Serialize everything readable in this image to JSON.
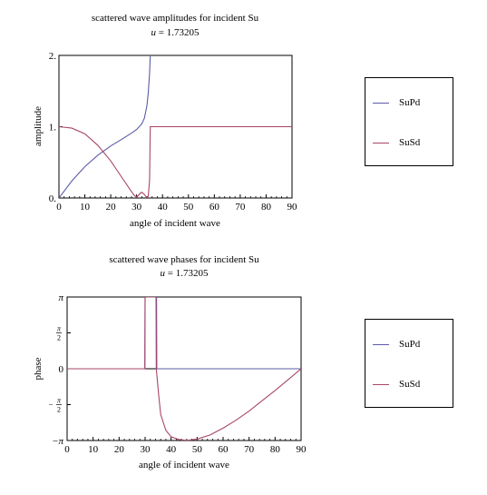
{
  "colors": {
    "SuPd": "#5b5ba8",
    "SuSd": "#a8456b"
  },
  "chart_data": [
    {
      "type": "line",
      "title": "scattered wave amplitudes for incident Su",
      "subtitle_var": "u",
      "subtitle_value": "= 1.73205",
      "xlabel": "angle of incident wave",
      "ylabel": "amplitude",
      "xlim": [
        0,
        90
      ],
      "ylim": [
        0,
        2
      ],
      "x_ticks": [
        "0",
        "10",
        "20",
        "30",
        "40",
        "50",
        "60",
        "70",
        "80",
        "90"
      ],
      "y_ticks": [
        "0.",
        "1.",
        "2."
      ],
      "legend": [
        "SuPd",
        "SuSd"
      ],
      "series": [
        {
          "name": "SuPd",
          "x": [
            0,
            5,
            10,
            15,
            20,
            25,
            28,
            30,
            32,
            33,
            34,
            34.5,
            35,
            35.264
          ],
          "y": [
            0,
            0.24,
            0.44,
            0.6,
            0.73,
            0.84,
            0.91,
            0.96,
            1.04,
            1.12,
            1.3,
            1.48,
            1.75,
            2.0
          ]
        },
        {
          "name": "SuSd",
          "x": [
            0,
            5,
            10,
            15,
            20,
            25,
            28,
            29,
            30,
            31,
            31.5,
            32,
            33,
            34,
            34.5,
            35,
            35.264,
            36,
            50,
            70,
            90
          ],
          "y": [
            1.0,
            0.98,
            0.9,
            0.74,
            0.52,
            0.25,
            0.09,
            0.04,
            0.01,
            0.05,
            0.07,
            0.08,
            0.05,
            0.0,
            0.03,
            0.25,
            1.0,
            1.0,
            1.0,
            1.0,
            1.0
          ]
        }
      ]
    },
    {
      "type": "line",
      "title": "scattered wave phases for incident Su",
      "subtitle_var": "u",
      "subtitle_value": "= 1.73205",
      "xlabel": "angle of incident wave",
      "ylabel": "phase",
      "xlim": [
        0,
        90
      ],
      "ylim": [
        -3.14159,
        3.14159
      ],
      "x_ticks": [
        "0",
        "10",
        "20",
        "30",
        "40",
        "50",
        "60",
        "70",
        "80",
        "90"
      ],
      "y_tick_values": [
        -3.14159,
        -1.5708,
        0,
        1.5708,
        3.14159
      ],
      "y_tick_labels": [
        "−π",
        "−π/2",
        "0",
        "π/2",
        "π"
      ],
      "legend": [
        "SuPd",
        "SuSd"
      ],
      "series": [
        {
          "name": "SuPd",
          "x": [
            0,
            29.9,
            30,
            34.4,
            34.5,
            90
          ],
          "y": [
            0,
            0,
            3.14159,
            3.14159,
            0,
            0
          ]
        },
        {
          "name": "SuSd",
          "x": [
            0,
            29.9,
            30,
            34.2,
            34.3,
            35.264,
            36,
            38,
            40,
            43,
            46,
            50,
            55,
            60,
            65,
            70,
            75,
            80,
            85,
            90
          ],
          "y": [
            0,
            0,
            3.14159,
            3.14159,
            0,
            -1.2,
            -2.0,
            -2.7,
            -2.98,
            -3.1,
            -3.14,
            -3.08,
            -2.9,
            -2.6,
            -2.25,
            -1.85,
            -1.4,
            -0.95,
            -0.48,
            0
          ]
        }
      ]
    }
  ]
}
